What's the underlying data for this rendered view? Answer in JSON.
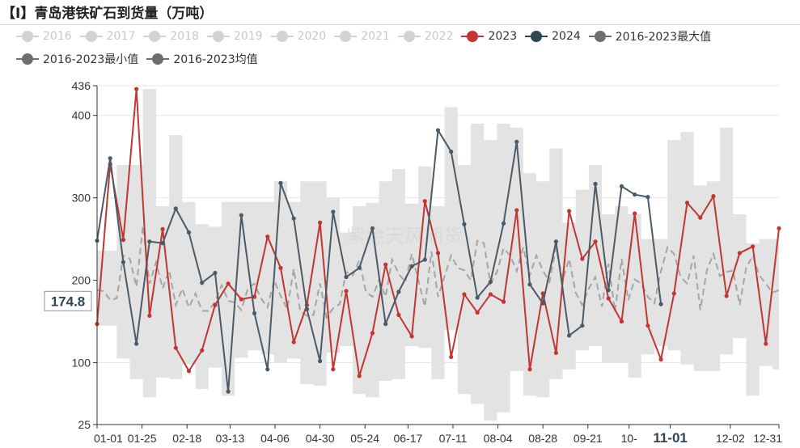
{
  "title": "【I】青岛港铁矿石到货量（万吨）",
  "legend": [
    {
      "label": "2016",
      "color": "#d2d2d2",
      "active": false
    },
    {
      "label": "2017",
      "color": "#d2d2d2",
      "active": false
    },
    {
      "label": "2018",
      "color": "#d2d2d2",
      "active": false
    },
    {
      "label": "2019",
      "color": "#d2d2d2",
      "active": false
    },
    {
      "label": "2020",
      "color": "#d2d2d2",
      "active": false
    },
    {
      "label": "2021",
      "color": "#d2d2d2",
      "active": false
    },
    {
      "label": "2022",
      "color": "#d2d2d2",
      "active": false
    },
    {
      "label": "2023",
      "color": "#c23531",
      "active": true
    },
    {
      "label": "2024",
      "color": "#2f4554",
      "active": true
    },
    {
      "label": "2016-2023最大值",
      "color": "#6e6e6e",
      "active": true
    },
    {
      "label": "2016-2023最小值",
      "color": "#6e6e6e",
      "active": true
    },
    {
      "label": "2016-2023均值",
      "color": "#6e6e6e",
      "active": true
    }
  ],
  "watermark": "紫金天风期货",
  "colors": {
    "s2023": "#c23531",
    "s2024": "#4a5a68",
    "band": "#e3e3e3",
    "mean": "#a5a5a5",
    "grid": "#e6e6e6",
    "axis": "#333333"
  },
  "chart_data": {
    "type": "line",
    "ylim": [
      25,
      436
    ],
    "ytick_labels": [
      "25",
      "100",
      "200",
      "300",
      "400",
      "436"
    ],
    "yticks": [
      25,
      100,
      200,
      300,
      400,
      436
    ],
    "xlim": [
      0,
      52
    ],
    "xtick_labels": [
      "01-01",
      "01-25",
      "02-18",
      "03-13",
      "04-06",
      "04-30",
      "05-24",
      "06-17",
      "07-11",
      "08-04",
      "08-28",
      "09-21",
      "10-",
      "11-01",
      "12-02",
      "12-31"
    ],
    "xtick_pos": [
      0,
      3.43,
      6.86,
      10.14,
      13.57,
      17.0,
      20.43,
      23.71,
      27.14,
      30.57,
      34.0,
      37.43,
      40.57,
      43.71,
      48.29,
      52
    ],
    "highlight_tick": "11-01",
    "crosshair": {
      "value": 174.8,
      "label": "174.8"
    },
    "series": [
      {
        "name": "2023",
        "key": "s2023",
        "x": [
          0,
          1,
          2,
          3,
          4,
          5,
          6,
          7,
          8,
          9,
          10,
          11,
          12,
          13,
          14,
          15,
          16,
          17,
          18,
          19,
          20,
          21,
          22,
          23,
          24,
          25,
          26,
          27,
          28,
          29,
          30,
          31,
          32,
          33,
          34,
          35,
          36,
          37,
          38,
          39,
          40,
          41,
          42,
          43,
          44,
          45,
          46,
          47,
          48,
          49,
          50,
          51,
          52
        ],
        "y": [
          147,
          341,
          249,
          432,
          157,
          262,
          118,
          90,
          115,
          170,
          196,
          177,
          180,
          253,
          215,
          125,
          170,
          270,
          92,
          187,
          84,
          136,
          219,
          158,
          132,
          296,
          233,
          107,
          183,
          161,
          183,
          174,
          285,
          92,
          184,
          112,
          284,
          226,
          247,
          178,
          150,
          281,
          145,
          104,
          184,
          294,
          276,
          302,
          181,
          233,
          241,
          123,
          263
        ]
      },
      {
        "name": "2024",
        "key": "s2024",
        "x": [
          0,
          1,
          2,
          3,
          4,
          5,
          6,
          7,
          8,
          9,
          10,
          11,
          12,
          13,
          14,
          15,
          16,
          17,
          18,
          19,
          20,
          21,
          22,
          23,
          24,
          25,
          26,
          27,
          28,
          29,
          30,
          31,
          32,
          33,
          34,
          35,
          36,
          37,
          38,
          39,
          40,
          41,
          42,
          43
        ],
        "y": [
          248,
          348,
          222,
          123,
          247,
          245,
          287,
          258,
          197,
          209,
          65,
          279,
          160,
          92,
          318,
          275,
          165,
          102,
          283,
          204,
          215,
          263,
          147,
          186,
          217,
          225,
          382,
          356,
          268,
          179,
          198,
          269,
          368,
          195,
          172,
          247,
          133,
          145,
          317,
          188,
          314,
          304,
          301,
          171
        ]
      },
      {
        "name": "2016-2023最大值",
        "key": "max",
        "x": [
          0,
          1,
          2,
          3,
          4,
          5,
          6,
          7,
          8,
          9,
          10,
          11,
          12,
          13,
          14,
          15,
          16,
          17,
          18,
          19,
          20,
          21,
          22,
          23,
          24,
          25,
          26,
          27,
          28,
          29,
          30,
          31,
          32,
          33,
          34,
          35,
          36,
          37,
          38,
          39,
          40,
          41,
          42,
          43,
          44,
          45,
          46,
          47,
          48,
          49,
          50,
          51,
          52
        ],
        "y": [
          236,
          236,
          340,
          340,
          432,
          290,
          376,
          295,
          268,
          265,
          295,
          295,
          295,
          295,
          320,
          295,
          320,
          320,
          300,
          258,
          290,
          294,
          320,
          335,
          293,
          338,
          290,
          410,
          340,
          390,
          370,
          390,
          385,
          330,
          320,
          360,
          270,
          310,
          340,
          280,
          290,
          280,
          250,
          250,
          370,
          380,
          315,
          320,
          385,
          280,
          245,
          250,
          250
        ]
      },
      {
        "name": "2016-2023最小值",
        "key": "min",
        "x": [
          0,
          1,
          2,
          3,
          4,
          5,
          6,
          7,
          8,
          9,
          10,
          11,
          12,
          13,
          14,
          15,
          16,
          17,
          18,
          19,
          20,
          21,
          22,
          23,
          24,
          25,
          26,
          27,
          28,
          29,
          30,
          31,
          32,
          33,
          34,
          35,
          36,
          37,
          38,
          39,
          40,
          41,
          42,
          43,
          44,
          45,
          46,
          47,
          48,
          49,
          50,
          51,
          52
        ],
        "y": [
          145,
          145,
          105,
          80,
          58,
          82,
          80,
          98,
          68,
          94,
          60,
          106,
          115,
          110,
          100,
          105,
          74,
          72,
          112,
          120,
          62,
          58,
          78,
          80,
          120,
          118,
          80,
          140,
          62,
          50,
          30,
          40,
          90,
          60,
          58,
          80,
          92,
          115,
          120,
          100,
          100,
          82,
          110,
          120,
          115,
          98,
          90,
          90,
          110,
          130,
          60,
          96,
          92
        ]
      },
      {
        "name": "2016-2023均值",
        "key": "mean",
        "x": [
          0,
          0.5,
          1,
          1.5,
          2,
          2.5,
          3,
          3.5,
          4,
          4.5,
          5,
          5.5,
          6,
          6.5,
          7,
          7.5,
          8,
          8.5,
          9,
          9.5,
          10,
          10.5,
          11,
          11.5,
          12,
          12.5,
          13,
          13.5,
          14,
          14.5,
          15,
          15.5,
          16,
          16.5,
          17,
          17.5,
          18,
          18.5,
          19,
          19.5,
          20,
          20.5,
          21,
          21.5,
          22,
          22.5,
          23,
          23.5,
          24,
          24.5,
          25,
          25.5,
          26,
          26.5,
          27,
          27.5,
          28,
          28.5,
          29,
          29.5,
          30,
          30.5,
          31,
          31.5,
          32,
          32.5,
          33,
          33.5,
          34,
          34.5,
          35,
          35.5,
          36,
          36.5,
          37,
          37.5,
          38,
          38.5,
          39,
          39.5,
          40,
          40.5,
          41,
          41.5,
          42,
          42.5,
          43,
          43.5,
          44,
          44.5,
          45,
          45.5,
          46,
          46.5,
          47,
          47.5,
          48,
          48.5,
          49,
          49.5,
          50,
          50.5,
          51,
          51.5,
          52
        ],
        "y": [
          188,
          187,
          176,
          178,
          230,
          226,
          192,
          266,
          196,
          222,
          190,
          212,
          170,
          190,
          167,
          184,
          163,
          163,
          174,
          194,
          175,
          173,
          164,
          190,
          196,
          178,
          167,
          200,
          181,
          165,
          214,
          162,
          157,
          158,
          196,
          155,
          166,
          171,
          210,
          206,
          224,
          186,
          180,
          200,
          180,
          225,
          208,
          198,
          232,
          200,
          168,
          235,
          180,
          205,
          230,
          215,
          212,
          200,
          248,
          245,
          196,
          210,
          239,
          230,
          211,
          240,
          206,
          230,
          212,
          198,
          240,
          200,
          226,
          185,
          170,
          190,
          204,
          168,
          220,
          162,
          226,
          176,
          201,
          196,
          180,
          172,
          211,
          240,
          232,
          204,
          196,
          230,
          164,
          212,
          232,
          205,
          210,
          212,
          170,
          215,
          230,
          206,
          196,
          185,
          188
        ]
      }
    ]
  }
}
